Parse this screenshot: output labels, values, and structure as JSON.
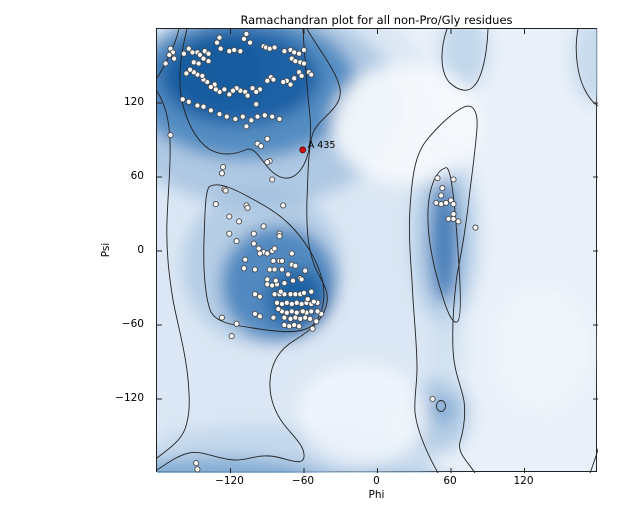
{
  "title": "Ramachandran plot for all non-Pro/Gly residues",
  "axes": {
    "xlabel": "Phi",
    "ylabel": "Psi",
    "x_range": [
      -180,
      180
    ],
    "y_range": [
      -180,
      180
    ],
    "x_ticks": [
      -120,
      -60,
      0,
      60,
      120
    ],
    "y_ticks": [
      120,
      60,
      0,
      -60,
      -120
    ],
    "grid": false
  },
  "chart_data": {
    "type": "scatter",
    "title": "Ramachandran plot for all non-Pro/Gly residues",
    "xlabel": "Phi",
    "ylabel": "Psi",
    "xlim": [
      -180,
      180
    ],
    "ylim": [
      -180,
      180
    ],
    "legend": "none",
    "background": "kernel-density shading (blue) with two contour levels",
    "density_regions": [
      {
        "name": "beta-sheet-region",
        "approx_center": [
          -105,
          130
        ]
      },
      {
        "name": "alpha-helix-region",
        "approx_center": [
          -70,
          -25
        ]
      },
      {
        "name": "left-handed-alpha-region",
        "approx_center": [
          55,
          10
        ]
      },
      {
        "name": "bottom-edge-band",
        "approx_center": [
          -135,
          -175
        ]
      },
      {
        "name": "lower-right-pocket",
        "approx_center": [
          50,
          -130
        ]
      }
    ],
    "series": [
      {
        "name": "residues",
        "marker": "white-circle",
        "points": [
          [
            -169,
            164
          ],
          [
            -167,
            161
          ],
          [
            -170,
            159
          ],
          [
            -166,
            156
          ],
          [
            -173,
            152
          ],
          [
            -158,
            160
          ],
          [
            -154,
            164
          ],
          [
            -151,
            161
          ],
          [
            -147,
            161
          ],
          [
            -145,
            159
          ],
          [
            -141,
            162
          ],
          [
            -138,
            160
          ],
          [
            -142,
            156
          ],
          [
            -138,
            154
          ],
          [
            -150,
            153
          ],
          [
            -146,
            152
          ],
          [
            -131,
            169
          ],
          [
            -129,
            173
          ],
          [
            -128,
            164
          ],
          [
            -121,
            162
          ],
          [
            -117,
            163
          ],
          [
            -112,
            162
          ],
          [
            -109,
            172
          ],
          [
            -107,
            176
          ],
          [
            -104,
            169
          ],
          [
            -93,
            166
          ],
          [
            -91,
            165
          ],
          [
            -88,
            164
          ],
          [
            -84,
            165
          ],
          [
            -76,
            162
          ],
          [
            -71,
            163
          ],
          [
            -68,
            161
          ],
          [
            -64,
            160
          ],
          [
            -60,
            163
          ],
          [
            -70,
            156
          ],
          [
            -67,
            154
          ],
          [
            -63,
            153
          ],
          [
            -60,
            152
          ],
          [
            -56,
            145
          ],
          [
            -54,
            143
          ],
          [
            -64,
            145
          ],
          [
            -62,
            142
          ],
          [
            -68,
            140
          ],
          [
            -74,
            138
          ],
          [
            -77,
            137
          ],
          [
            -71,
            135
          ],
          [
            -87,
            141
          ],
          [
            -85,
            139
          ],
          [
            -90,
            138
          ],
          [
            -96,
            131
          ],
          [
            -99,
            129
          ],
          [
            -102,
            132
          ],
          [
            -108,
            129
          ],
          [
            -106,
            126
          ],
          [
            -112,
            130
          ],
          [
            -115,
            132
          ],
          [
            -118,
            130
          ],
          [
            -121,
            127
          ],
          [
            -125,
            131
          ],
          [
            -129,
            129
          ],
          [
            -132,
            131
          ],
          [
            -133,
            135
          ],
          [
            -136,
            133
          ],
          [
            -139,
            137
          ],
          [
            -142,
            139
          ],
          [
            -143,
            142
          ],
          [
            -147,
            143
          ],
          [
            -150,
            145
          ],
          [
            -153,
            147
          ],
          [
            -156,
            144
          ],
          [
            -159,
            123
          ],
          [
            -154,
            121
          ],
          [
            -147,
            118
          ],
          [
            -142,
            117
          ],
          [
            -136,
            114
          ],
          [
            -129,
            111
          ],
          [
            -123,
            109
          ],
          [
            -116,
            107
          ],
          [
            -110,
            109
          ],
          [
            -103,
            106
          ],
          [
            -98,
            109
          ],
          [
            -92,
            110
          ],
          [
            -86,
            109
          ],
          [
            -80,
            107
          ],
          [
            -99,
            119
          ],
          [
            -107,
            101
          ],
          [
            -90,
            91
          ],
          [
            -98,
            87
          ],
          [
            -95,
            85
          ],
          [
            -88,
            73
          ],
          [
            -90,
            72
          ],
          [
            -126,
            68
          ],
          [
            -127,
            63
          ],
          [
            -86,
            58
          ],
          [
            -169,
            94
          ],
          [
            -125,
            50
          ],
          [
            -132,
            38
          ],
          [
            -107,
            37
          ],
          [
            -77,
            37
          ],
          [
            -121,
            28
          ],
          [
            -113,
            24
          ],
          [
            -121,
            14
          ],
          [
            -115,
            8
          ],
          [
            -101,
            14
          ],
          [
            -93,
            20
          ],
          [
            -80,
            14
          ],
          [
            -101,
            6
          ],
          [
            -97,
            2
          ],
          [
            -93,
            -1
          ],
          [
            -90,
            -2
          ],
          [
            -86,
            0
          ],
          [
            -84,
            2
          ],
          [
            -80,
            12
          ],
          [
            -108,
            -7
          ],
          [
            -100,
            -15
          ],
          [
            -96,
            -2
          ],
          [
            -85,
            -8
          ],
          [
            -80,
            -8
          ],
          [
            -78,
            -8
          ],
          [
            -70,
            -2
          ],
          [
            -109,
            -14
          ],
          [
            -90,
            -23
          ],
          [
            -88,
            -15
          ],
          [
            -84,
            -15
          ],
          [
            -78,
            -15
          ],
          [
            -70,
            -11
          ],
          [
            -67,
            -12
          ],
          [
            -63,
            -22
          ],
          [
            -59,
            -16
          ],
          [
            -90,
            -27
          ],
          [
            -86,
            -28
          ],
          [
            -82,
            -27
          ],
          [
            -100,
            -35
          ],
          [
            -96,
            -37
          ],
          [
            -84,
            -35
          ],
          [
            -80,
            -35
          ],
          [
            -76,
            -35
          ],
          [
            -71,
            -35
          ],
          [
            -67,
            -35
          ],
          [
            -63,
            -35
          ],
          [
            -82,
            -42
          ],
          [
            -78,
            -43
          ],
          [
            -74,
            -42
          ],
          [
            -70,
            -43
          ],
          [
            -66,
            -42
          ],
          [
            -62,
            -43
          ],
          [
            -58,
            -42
          ],
          [
            -54,
            -43
          ],
          [
            -49,
            -42
          ],
          [
            -78,
            -49
          ],
          [
            -74,
            -50
          ],
          [
            -70,
            -49
          ],
          [
            -66,
            -50
          ],
          [
            -62,
            -49
          ],
          [
            -58,
            -50
          ],
          [
            -54,
            -49
          ],
          [
            -76,
            -54
          ],
          [
            -71,
            -55
          ],
          [
            -67,
            -54
          ],
          [
            -63,
            -55
          ],
          [
            -59,
            -54
          ],
          [
            -55,
            -55
          ],
          [
            -85,
            -54
          ],
          [
            -96,
            -53
          ],
          [
            -100,
            -51
          ],
          [
            -76,
            -60
          ],
          [
            -72,
            -61
          ],
          [
            -68,
            -60
          ],
          [
            -64,
            -61
          ],
          [
            -127,
            -54
          ],
          [
            -115,
            -59
          ],
          [
            -119,
            -69
          ],
          [
            -81,
            -47
          ],
          [
            -61,
            -49
          ],
          [
            -46,
            -51
          ],
          [
            -83,
            -24
          ],
          [
            -79,
            -33
          ],
          [
            -73,
            -19
          ],
          [
            -76,
            -26
          ],
          [
            -69,
            -24
          ],
          [
            -62,
            -23
          ],
          [
            -60,
            -34
          ],
          [
            -57,
            -39
          ],
          [
            -54,
            -33
          ],
          [
            -53,
            -63
          ],
          [
            -52,
            -41
          ],
          [
            -50,
            -57
          ],
          [
            -49,
            -49
          ],
          [
            -124,
            49
          ],
          [
            -106,
            35
          ],
          [
            49,
            59
          ],
          [
            62,
            58
          ],
          [
            53,
            51
          ],
          [
            52,
            45
          ],
          [
            48,
            39
          ],
          [
            52,
            38
          ],
          [
            56,
            39
          ],
          [
            60,
            41
          ],
          [
            62,
            38
          ],
          [
            62,
            30
          ],
          [
            58,
            26
          ],
          [
            62,
            26
          ],
          [
            66,
            24
          ],
          [
            80,
            19
          ],
          [
            45,
            -120
          ],
          [
            -148,
            -172
          ],
          [
            -147,
            -177
          ]
        ]
      },
      {
        "name": "outliers",
        "marker": "red-circle",
        "points": [
          [
            -61,
            82
          ]
        ],
        "labels": [
          "A 435"
        ]
      }
    ]
  },
  "colors": {
    "page_background": "#ffffff",
    "plot_background": "#e9f0f9",
    "density_dark": "#1b5fa3",
    "density_mid": "#4a86bf",
    "density_light": "#b9d2e8",
    "contour_line": "#222222",
    "marker_fill": "#fdfdfd",
    "marker_stroke": "#4a4a4a",
    "outlier_marker": "#cc1111",
    "text": "#000000"
  }
}
